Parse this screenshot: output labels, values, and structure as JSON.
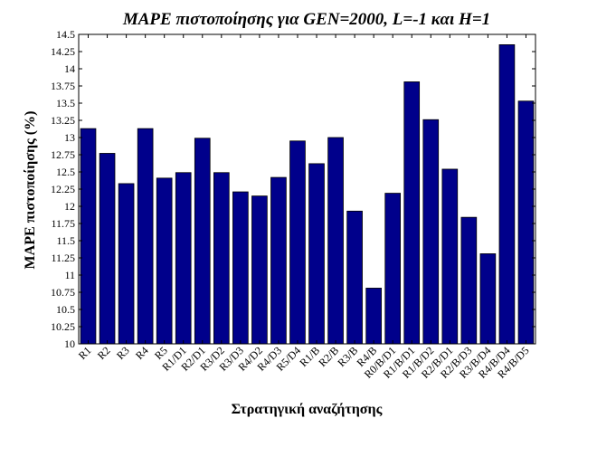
{
  "chart_data": {
    "type": "bar",
    "title": "MAPE πιστοποίησης για GEN=2000, L=-1 και H=1",
    "xlabel": "Στρατηγική αναζήτησης",
    "ylabel": "MAPE πιστοποίησης (%)",
    "ylim": [
      10,
      14.5
    ],
    "yticks": [
      10,
      10.25,
      10.5,
      10.75,
      11,
      11.25,
      11.5,
      11.75,
      12,
      12.25,
      12.5,
      12.75,
      13,
      13.25,
      13.5,
      13.75,
      14,
      14.25,
      14.5
    ],
    "ytick_labels": [
      "10",
      "10.25",
      "10.5",
      "10.75",
      "11",
      "11.25",
      "11.5",
      "11.75",
      "12",
      "12.25",
      "12.5",
      "12.75",
      "13",
      "13.25",
      "13.5",
      "13.75",
      "14",
      "14.25",
      "14.5"
    ],
    "grid": false,
    "bar_color": "#00008b",
    "categories": [
      "R1",
      "R2",
      "R3",
      "R4",
      "R5",
      "R1/D1",
      "R2/D1",
      "R3/D2",
      "R3/D3",
      "R4/D2",
      "R4/D3",
      "R5/D4",
      "R1/B",
      "R2/B",
      "R3/B",
      "R4/B",
      "R0/B/D1",
      "R1/B/D1",
      "R1/B/D2",
      "R2/B/D1",
      "R2/B/D3",
      "R3/B/D4",
      "R4/B/D4",
      "R4/B/D5"
    ],
    "values": [
      13.13,
      12.77,
      12.33,
      13.13,
      12.41,
      12.49,
      12.99,
      12.49,
      12.21,
      12.15,
      12.42,
      12.95,
      12.62,
      13.0,
      11.93,
      10.81,
      12.19,
      13.81,
      13.26,
      12.54,
      11.84,
      11.31,
      14.35,
      13.53
    ]
  }
}
